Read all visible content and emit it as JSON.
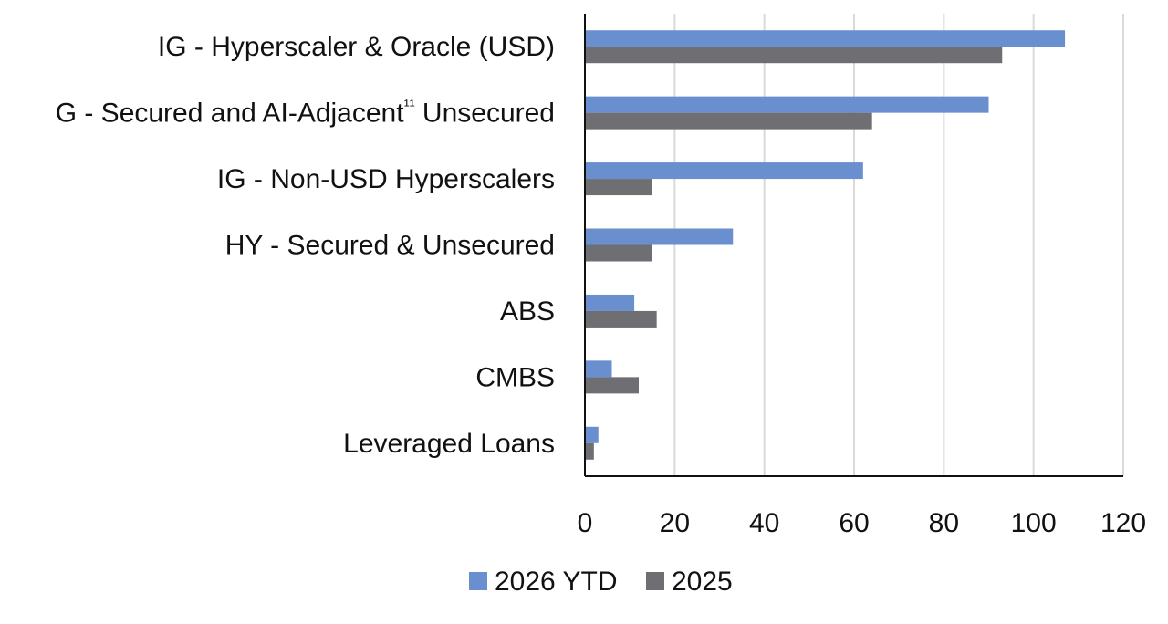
{
  "chart_data": {
    "type": "bar",
    "orientation": "horizontal",
    "categories": [
      "IG - Hyperscaler & Oracle (USD)",
      "G - Secured and AI-Adjacent¹¹ Unsecured",
      "IG - Non-USD Hyperscalers",
      "HY - Secured & Unsecured",
      "ABS",
      "CMBS",
      "Leveraged Loans"
    ],
    "series": [
      {
        "name": "2026 YTD",
        "color": "#6a8fcf",
        "values": [
          107,
          90,
          62,
          33,
          11,
          6,
          3
        ]
      },
      {
        "name": "2025",
        "color": "#6e6e73",
        "values": [
          93,
          64,
          15,
          15,
          16,
          12,
          2
        ]
      }
    ],
    "xlim": [
      0,
      120
    ],
    "xticks": [
      0,
      20,
      40,
      60,
      80,
      100,
      120
    ],
    "grid": true,
    "grid_color": "#d9d9d9",
    "legend_position": "bottom",
    "title": "",
    "xlabel": "",
    "ylabel": ""
  }
}
